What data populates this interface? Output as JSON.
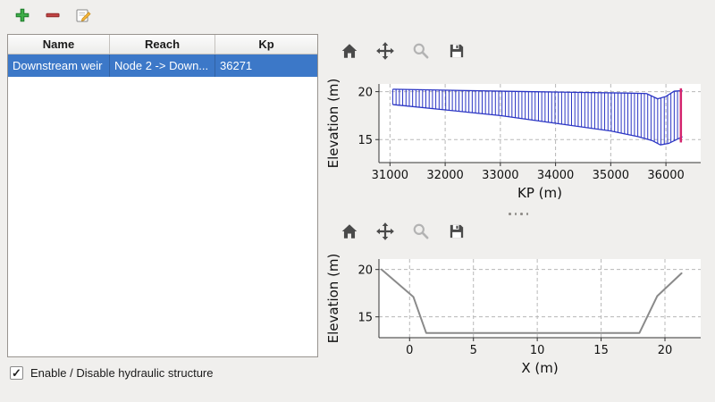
{
  "window": {
    "background": "#f0efed"
  },
  "main_toolbar": {
    "buttons": [
      {
        "name": "add-structure",
        "icon": "plus-icon"
      },
      {
        "name": "remove-structure",
        "icon": "minus-icon"
      },
      {
        "name": "edit-structure",
        "icon": "edit-icon"
      }
    ]
  },
  "structures_table": {
    "columns": [
      "Name",
      "Reach",
      "Kp"
    ],
    "rows": [
      {
        "name": "Downstream weir",
        "reach": "Node 2 -> Down...",
        "kp": "36271",
        "selected": true
      }
    ],
    "selection_color": "#3c78c8"
  },
  "enable_checkbox": {
    "label": "Enable / Disable hydraulic structure",
    "checked": true
  },
  "plot_toolbars": {
    "buttons": [
      {
        "name": "home",
        "icon": "home-icon"
      },
      {
        "name": "pan",
        "icon": "pan-arrows-icon"
      },
      {
        "name": "zoom",
        "icon": "magnifier-icon",
        "disabled": true
      },
      {
        "name": "save",
        "icon": "save-icon"
      }
    ]
  },
  "chart_data": [
    {
      "type": "area",
      "title": "",
      "xlabel": "KP (m)",
      "ylabel": "Elevation (m)",
      "xlim": [
        30800,
        36630
      ],
      "ylim": [
        12.6,
        20.8
      ],
      "xticks": [
        31000,
        32000,
        33000,
        34000,
        35000,
        36000
      ],
      "yticks": [
        15,
        20
      ],
      "grid": true,
      "band": {
        "name": "longitudinal-profile-band",
        "color": "#2b35c4",
        "hatch": "vertical",
        "step": 60,
        "x0": 31050,
        "x1": 36300,
        "top": [
          [
            31050,
            20.25
          ],
          [
            33500,
            20.0
          ],
          [
            35300,
            19.85
          ],
          [
            35650,
            19.8
          ],
          [
            35850,
            19.25
          ],
          [
            36000,
            19.5
          ],
          [
            36150,
            20.05
          ],
          [
            36300,
            20.1
          ]
        ],
        "bottom": [
          [
            31050,
            18.65
          ],
          [
            32000,
            18.1
          ],
          [
            33000,
            17.5
          ],
          [
            34000,
            16.7
          ],
          [
            35000,
            15.9
          ],
          [
            35500,
            15.3
          ],
          [
            35750,
            14.9
          ],
          [
            35900,
            14.45
          ],
          [
            36050,
            14.6
          ],
          [
            36300,
            15.3
          ]
        ]
      },
      "marker_line": {
        "name": "structure-position",
        "x": 36271,
        "y1": 14.7,
        "y2": 20.35,
        "color": "#d4256e",
        "width": 2.5
      }
    },
    {
      "type": "line",
      "title": "",
      "xlabel": "X (m)",
      "ylabel": "Elevation (m)",
      "xlim": [
        -2.4,
        22.8
      ],
      "ylim": [
        12.8,
        21.1
      ],
      "xticks": [
        0,
        5,
        10,
        15,
        20
      ],
      "yticks": [
        15,
        20
      ],
      "grid": true,
      "series": [
        {
          "name": "cross-section-profile",
          "color": "#8a8a8a",
          "width": 2,
          "points": [
            [
              -2.2,
              20.0
            ],
            [
              0.3,
              17.1
            ],
            [
              1.3,
              13.3
            ],
            [
              18.0,
              13.3
            ],
            [
              19.4,
              17.2
            ],
            [
              21.3,
              19.6
            ]
          ]
        }
      ]
    }
  ]
}
